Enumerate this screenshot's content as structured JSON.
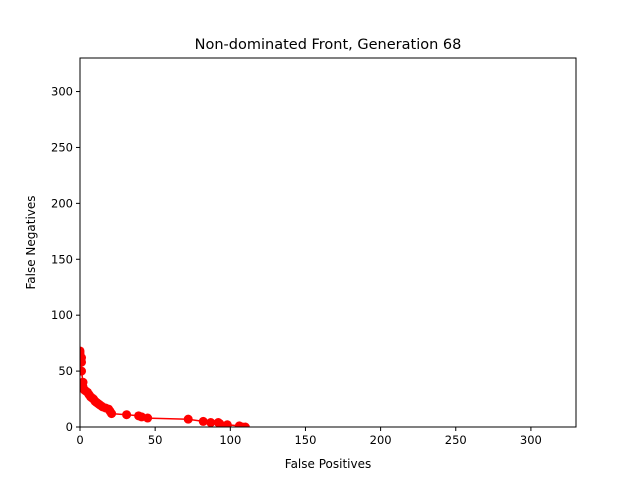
{
  "chart_data": {
    "type": "line",
    "title": "Non-dominated Front, Generation 68",
    "xlabel": "False Positives",
    "ylabel": "False Negatives",
    "xlim": [
      0,
      330
    ],
    "ylim": [
      0,
      330
    ],
    "xticks": [
      0,
      50,
      100,
      150,
      200,
      250,
      300
    ],
    "yticks": [
      0,
      50,
      100,
      150,
      200,
      250,
      300
    ],
    "grid": false,
    "marker_color": "#ff0000",
    "series": [
      {
        "points": [
          [
            0,
            68
          ],
          [
            0,
            66
          ],
          [
            1,
            62
          ],
          [
            1,
            58
          ],
          [
            1,
            50
          ],
          [
            2,
            40
          ],
          [
            2,
            36
          ],
          [
            3,
            33
          ],
          [
            4,
            32
          ],
          [
            5,
            31
          ],
          [
            6,
            29
          ],
          [
            7,
            27
          ],
          [
            8,
            26
          ],
          [
            9,
            25
          ],
          [
            10,
            23
          ],
          [
            11,
            22
          ],
          [
            12,
            21
          ],
          [
            13,
            20
          ],
          [
            14,
            19
          ],
          [
            15,
            18
          ],
          [
            17,
            17
          ],
          [
            19,
            16
          ],
          [
            20,
            14
          ],
          [
            21,
            12
          ],
          [
            31,
            11
          ],
          [
            39,
            10
          ],
          [
            41,
            9
          ],
          [
            45,
            8
          ],
          [
            72,
            7
          ],
          [
            82,
            5
          ],
          [
            87,
            4
          ],
          [
            92,
            4
          ],
          [
            93,
            3
          ],
          [
            98,
            2
          ],
          [
            106,
            1
          ],
          [
            108,
            0
          ],
          [
            110,
            0
          ]
        ]
      }
    ]
  }
}
